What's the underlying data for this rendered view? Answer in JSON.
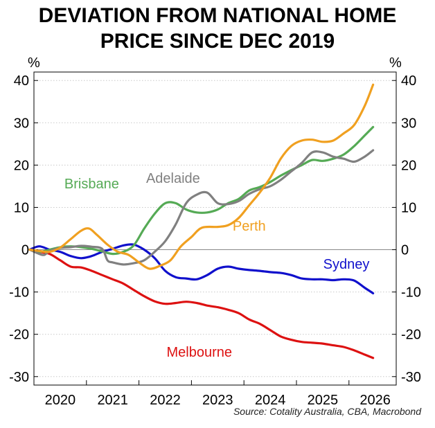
{
  "title": [
    "DEVIATION FROM NATIONAL HOME",
    "PRICE SINCE DEC 2019"
  ],
  "source": "Source: Cotality Australia, CBA, Macrobond",
  "chart_data": {
    "type": "line",
    "unit_left": "%",
    "unit_right": "%",
    "xlim": [
      2019.5,
      2026.4
    ],
    "ylim": [
      -32,
      42
    ],
    "yticks": [
      40,
      30,
      20,
      10,
      0,
      -10,
      -20,
      -30
    ],
    "ytick_labels": [
      "40",
      "30",
      "20",
      "10",
      "0",
      "-10",
      "-20",
      "-30"
    ],
    "xticks": [
      2020,
      2021,
      2022,
      2023,
      2024,
      2025,
      2026
    ],
    "xtick_labels": [
      "2020",
      "2021",
      "2022",
      "2023",
      "2024",
      "2025",
      "2026"
    ],
    "grid": true,
    "series": [
      {
        "name": "Sydney",
        "color": "#1010cc",
        "x": [
          2019.42,
          2019.6,
          2019.8,
          2020.0,
          2020.2,
          2020.4,
          2020.6,
          2020.8,
          2021.0,
          2021.2,
          2021.4,
          2021.6,
          2021.8,
          2022.0,
          2022.2,
          2022.4,
          2022.6,
          2022.8,
          2023.0,
          2023.2,
          2023.4,
          2023.6,
          2023.8,
          2024.0,
          2024.2,
          2024.4,
          2024.6,
          2024.8,
          2025.0,
          2025.2,
          2025.4,
          2025.6,
          2025.8,
          2025.96
        ],
        "y": [
          0,
          0.8,
          0,
          -0.5,
          -1.5,
          -2,
          -1.5,
          -0.5,
          0.2,
          1,
          1.2,
          0,
          -2,
          -5,
          -6.5,
          -6.8,
          -7,
          -6,
          -4.5,
          -4,
          -4.5,
          -4.8,
          -5,
          -5.3,
          -5.5,
          -6,
          -6.8,
          -7,
          -7,
          -7.2,
          -7,
          -7.3,
          -9,
          -10.3
        ]
      },
      {
        "name": "Melbourne",
        "color": "#dd1111",
        "x": [
          2019.42,
          2019.6,
          2019.8,
          2020.0,
          2020.2,
          2020.4,
          2020.6,
          2020.8,
          2021.0,
          2021.2,
          2021.4,
          2021.6,
          2021.8,
          2022.0,
          2022.2,
          2022.4,
          2022.6,
          2022.8,
          2023.0,
          2023.2,
          2023.4,
          2023.6,
          2023.8,
          2024.0,
          2024.2,
          2024.4,
          2024.6,
          2024.8,
          2025.0,
          2025.2,
          2025.4,
          2025.6,
          2025.8,
          2025.96
        ],
        "y": [
          0,
          -0.5,
          -1,
          -2.5,
          -4,
          -4.2,
          -5,
          -6,
          -7,
          -8,
          -9.5,
          -11,
          -12.2,
          -12.8,
          -12.6,
          -12.3,
          -12.6,
          -13.2,
          -13.6,
          -14.2,
          -15,
          -16.5,
          -17.5,
          -19,
          -20.5,
          -21.3,
          -21.8,
          -22,
          -22.2,
          -22.6,
          -23,
          -23.8,
          -24.8,
          -25.6
        ]
      },
      {
        "name": "Brisbane",
        "color": "#55aa55",
        "x": [
          2019.42,
          2019.6,
          2019.8,
          2020.0,
          2020.2,
          2020.4,
          2020.6,
          2020.8,
          2021.0,
          2021.2,
          2021.4,
          2021.6,
          2021.8,
          2022.0,
          2022.2,
          2022.4,
          2022.6,
          2022.8,
          2023.0,
          2023.2,
          2023.4,
          2023.6,
          2023.8,
          2024.0,
          2024.2,
          2024.4,
          2024.6,
          2024.8,
          2025.0,
          2025.2,
          2025.4,
          2025.6,
          2025.8,
          2025.96
        ],
        "y": [
          0,
          -0.5,
          0,
          0.6,
          0.8,
          0.6,
          0.2,
          -0.4,
          -1,
          -0.5,
          1,
          5,
          8.5,
          11,
          11,
          9.5,
          8.8,
          8.8,
          9.5,
          11,
          12,
          14,
          14.8,
          16,
          17.5,
          18.8,
          20,
          21.2,
          21,
          21.5,
          22.5,
          24.5,
          27,
          29
        ]
      },
      {
        "name": "Adelaide",
        "color": "#808080",
        "x": [
          2019.42,
          2019.6,
          2019.7,
          2019.8,
          2020.0,
          2020.2,
          2020.4,
          2020.6,
          2020.8,
          2020.9,
          2021.0,
          2021.2,
          2021.4,
          2021.6,
          2021.8,
          2022.0,
          2022.2,
          2022.4,
          2022.6,
          2022.8,
          2023.0,
          2023.2,
          2023.4,
          2023.6,
          2023.8,
          2024.0,
          2024.2,
          2024.4,
          2024.6,
          2024.8,
          2025.0,
          2025.2,
          2025.4,
          2025.6,
          2025.8,
          2025.96
        ],
        "y": [
          0,
          -1,
          -1.2,
          -0.3,
          0.4,
          0.6,
          0.9,
          0.7,
          0.2,
          -2.5,
          -3,
          -3.5,
          -3.2,
          -2.5,
          -0.5,
          2,
          6,
          11,
          13,
          13.5,
          11,
          10.8,
          11.5,
          13.2,
          14.3,
          15,
          16.5,
          18.5,
          20.5,
          23,
          23,
          22,
          21.5,
          20.8,
          22,
          23.5
        ]
      },
      {
        "name": "Perth",
        "color": "#f0a020",
        "x": [
          2019.42,
          2019.6,
          2019.8,
          2020.0,
          2020.2,
          2020.4,
          2020.55,
          2020.7,
          2020.9,
          2021.1,
          2021.3,
          2021.5,
          2021.7,
          2021.9,
          2022.1,
          2022.3,
          2022.5,
          2022.7,
          2023.0,
          2023.2,
          2023.4,
          2023.6,
          2023.8,
          2024.0,
          2024.2,
          2024.4,
          2024.6,
          2024.8,
          2025.0,
          2025.2,
          2025.4,
          2025.6,
          2025.8,
          2025.96
        ],
        "y": [
          0,
          -0.3,
          -0.5,
          0.5,
          2.5,
          4.5,
          5,
          3.5,
          1.2,
          -0.5,
          -1.2,
          -3,
          -4.5,
          -3.8,
          -2.5,
          0.8,
          3,
          5.2,
          5.4,
          5.8,
          7.5,
          10.5,
          13.5,
          17,
          21.5,
          24.5,
          25.8,
          26,
          25.5,
          25.8,
          27.5,
          29.5,
          34,
          39
        ]
      }
    ],
    "annotations": [
      {
        "text": "Brisbane",
        "x": 2020.6,
        "y": 14.5,
        "color": "#55aa55"
      },
      {
        "text": "Adelaide",
        "x": 2022.15,
        "y": 15.8,
        "color": "#808080"
      },
      {
        "text": "Perth",
        "x": 2023.6,
        "y": 4.5,
        "color": "#f0a020"
      },
      {
        "text": "Sydney",
        "x": 2025.45,
        "y": -4.5,
        "color": "#1010cc"
      },
      {
        "text": "Melbourne",
        "x": 2022.65,
        "y": -25.3,
        "color": "#dd1111"
      }
    ]
  }
}
